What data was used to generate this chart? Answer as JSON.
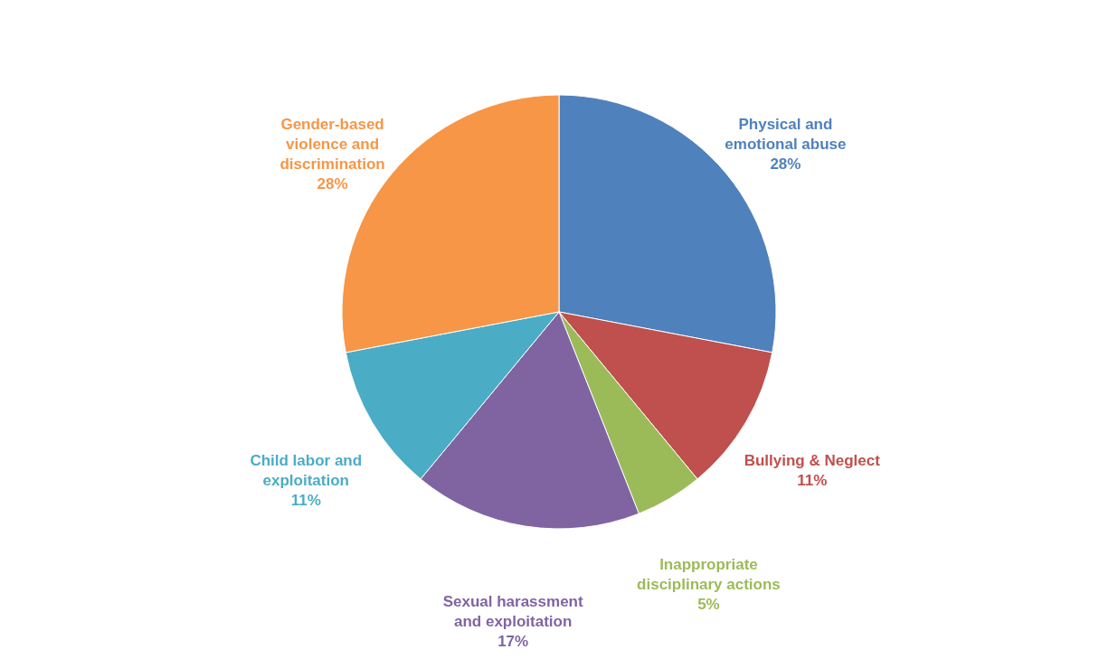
{
  "chart_data": {
    "type": "pie",
    "categories": [
      "Physical and emotional abuse",
      "Bullying & Neglect",
      "Inappropriate disciplinary actions",
      "Sexual harassment and exploitation",
      "Child labor and exploitation",
      "Gender-based violence and discrimination"
    ],
    "values": [
      28,
      11,
      5,
      17,
      11,
      28
    ],
    "value_labels": [
      "28%",
      "11%",
      "5%",
      "17%",
      "11%",
      "28%"
    ],
    "colors": [
      "#4f81bd",
      "#c0504d",
      "#9bbb59",
      "#8064a2",
      "#4bacc6",
      "#f79646"
    ]
  }
}
